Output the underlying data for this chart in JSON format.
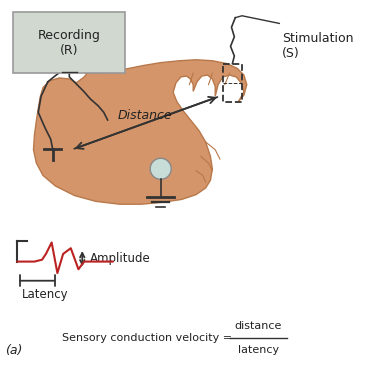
{
  "bg_color": "#ffffff",
  "hand_color": "#d4956a",
  "hand_edge_color": "#b8784a",
  "thumb_color": "#c8855a",
  "recording_box_color": "#d0d8d0",
  "recording_box_edge": "#999999",
  "recording_text": "Recording\n(R)",
  "stimulation_text": "Stimulation\n(S)",
  "distance_text": "Distance",
  "latency_text": "Latency",
  "amplitude_text": "Amplitude",
  "formula_left": "Sensory conduction velocity = ",
  "formula_num": "distance",
  "formula_den": "latency",
  "label_a": "(a)",
  "waveform_color": "#bb2222",
  "electrode_fill": "#c8ddd8",
  "electrode_edge": "#888888",
  "line_color": "#333333",
  "text_color": "#222222",
  "arrow_color": "#333333",
  "finger_line_color": "#a06030"
}
